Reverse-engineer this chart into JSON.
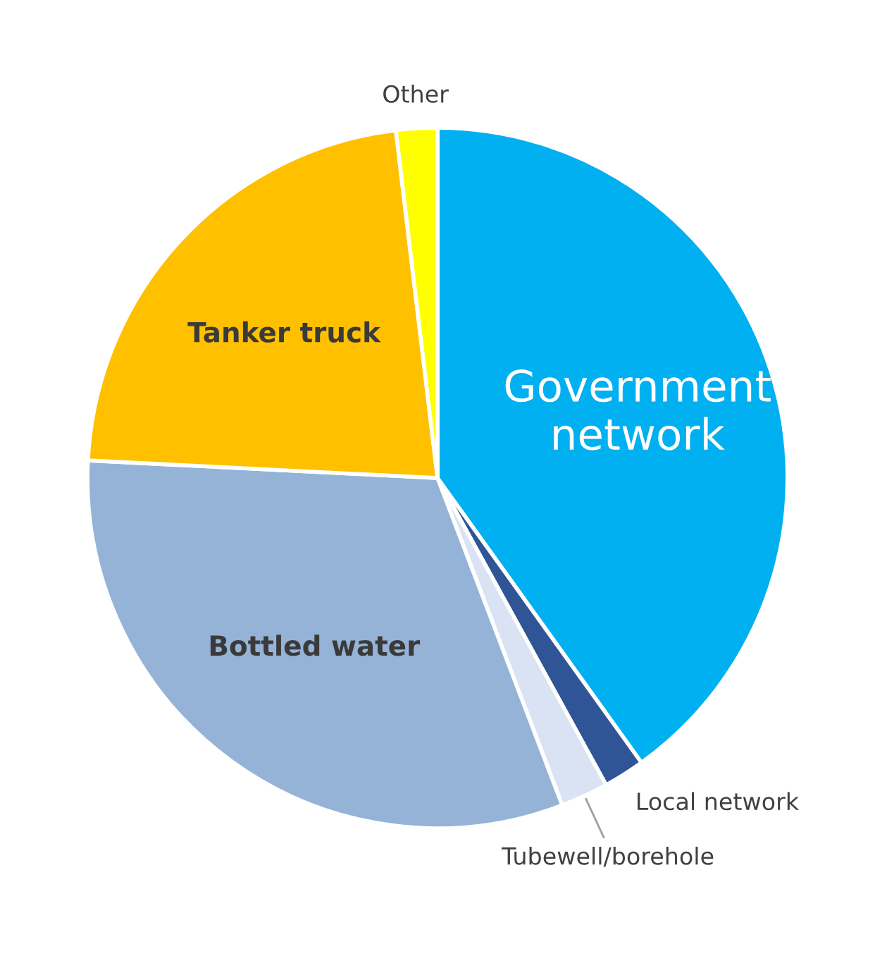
{
  "chart_data": {
    "type": "pie",
    "categories": [
      "Government network",
      "Local network",
      "Tubewell/borehole",
      "Bottled water",
      "Tanker truck",
      "Other"
    ],
    "values": [
      40.1,
      1.9,
      2.2,
      31.6,
      22.3,
      1.9
    ],
    "colors": [
      "#00b0f0",
      "#2f5597",
      "#dae3f3",
      "#95b3d7",
      "#ffc000",
      "#ffff00"
    ]
  }
}
